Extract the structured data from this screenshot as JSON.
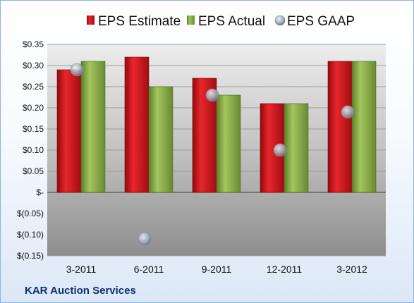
{
  "company": "KAR Auction Services",
  "colors": {
    "estimate": "#d0161c",
    "actual": "#8cb04a",
    "gaap": "#a9b2bd"
  },
  "chart_data": {
    "type": "bar",
    "categories": [
      "3-2011",
      "6-2011",
      "9-2011",
      "12-2011",
      "3-2012"
    ],
    "series": [
      {
        "name": "EPS Estimate",
        "type": "bar",
        "values": [
          0.29,
          0.32,
          0.27,
          0.21,
          0.31
        ]
      },
      {
        "name": "EPS Actual",
        "type": "bar",
        "values": [
          0.31,
          0.25,
          0.23,
          0.21,
          0.31
        ]
      },
      {
        "name": "EPS GAAP",
        "type": "scatter",
        "values": [
          0.29,
          -0.11,
          0.23,
          0.1,
          0.19
        ]
      }
    ],
    "ylim": [
      -0.15,
      0.35
    ],
    "yticks": [
      0.35,
      0.3,
      0.25,
      0.2,
      0.15,
      0.1,
      0.05,
      0,
      -0.05,
      -0.1,
      -0.15
    ],
    "ytick_labels": [
      "$0.35",
      "$0.30",
      "$0.25",
      "$0.20",
      "$0.15",
      "$0.10",
      "$0.05",
      "$-",
      "$(0.05)",
      "$(0.10)",
      "$(0.15)"
    ],
    "grid": true,
    "legend": "top"
  }
}
